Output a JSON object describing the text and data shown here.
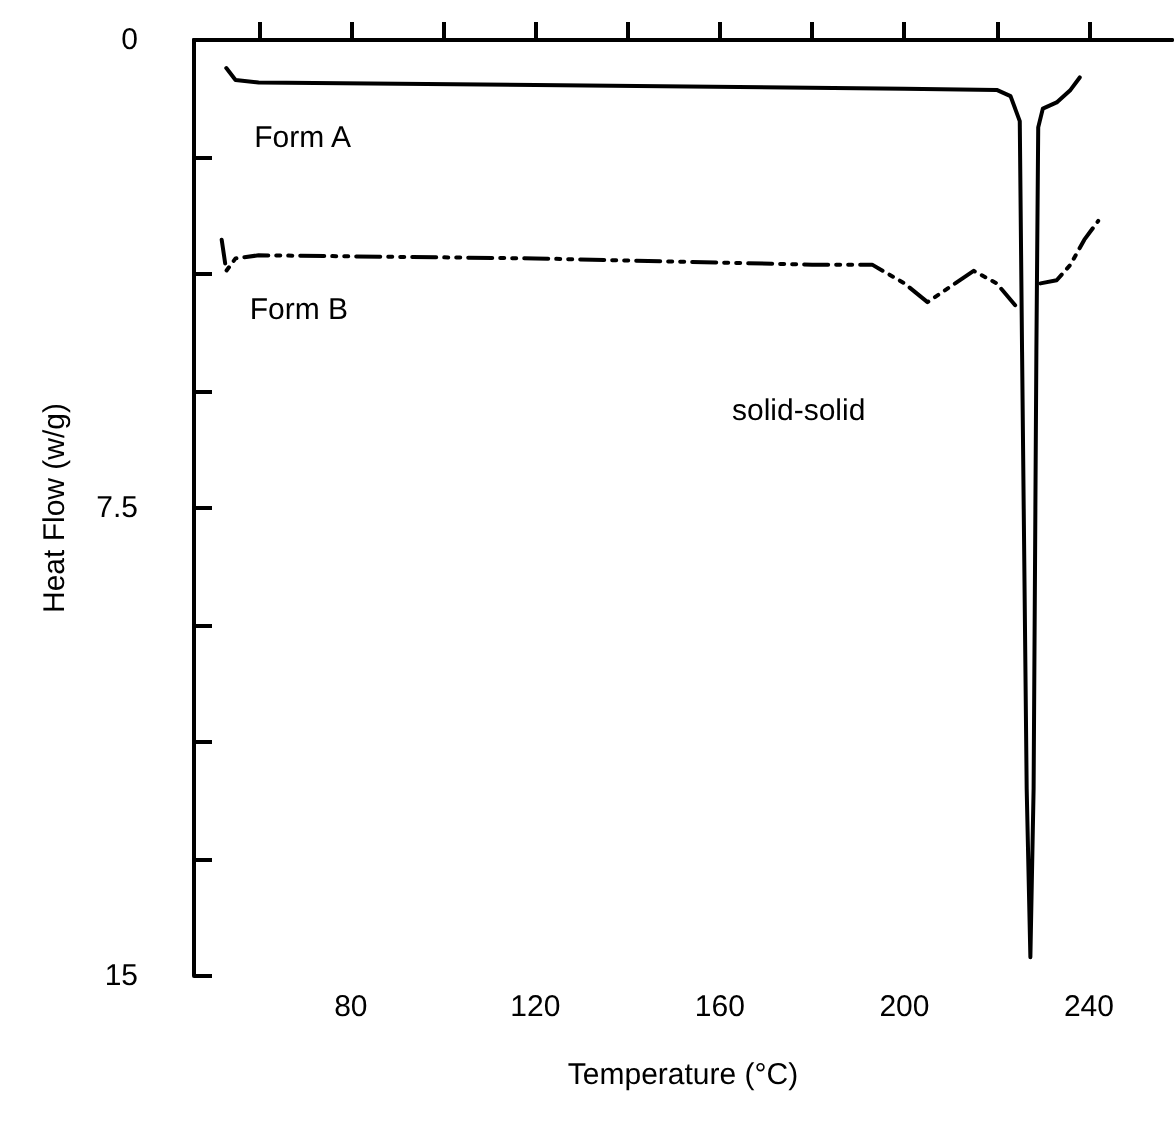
{
  "chart_data": {
    "type": "line",
    "xlabel": "Temperature (°C)",
    "ylabel": "Heat Flow (w/g)",
    "xlim": [
      46,
      258
    ],
    "ylim": [
      15,
      0
    ],
    "xticks": [
      {
        "value": 60,
        "label": null
      },
      80,
      {
        "value": 100,
        "label": null
      },
      120,
      {
        "value": 140,
        "label": null
      },
      160,
      {
        "value": 180,
        "label": null
      },
      200,
      {
        "value": 220,
        "label": null
      },
      240
    ],
    "yticks": [
      0,
      {
        "value": 1.875,
        "label": null
      },
      {
        "value": 3.75,
        "label": null
      },
      {
        "value": 5.625,
        "label": null
      },
      7.5,
      {
        "value": 9.375,
        "label": null
      },
      {
        "value": 11.25,
        "label": null
      },
      {
        "value": 13.125,
        "label": null
      },
      15
    ],
    "grid": false,
    "legend": false,
    "marker": "none",
    "series": [
      {
        "name": "Form A",
        "color": "#000000",
        "line_style": "solid",
        "x": [
          53,
          55,
          60,
          120,
          200,
          220,
          223,
          225,
          225.5,
          226.5,
          227.3,
          228,
          228.6,
          229,
          230,
          233,
          236,
          238
        ],
        "values": [
          0.45,
          0.64,
          0.68,
          0.72,
          0.78,
          0.8,
          0.9,
          1.3,
          5,
          12,
          14.7,
          12,
          5,
          1.4,
          1.1,
          1.0,
          0.8,
          0.6
        ]
      },
      {
        "name": "Form B",
        "color": "#000000",
        "line_style": "dashed",
        "x": [
          52,
          53,
          55,
          60,
          120,
          180,
          193,
          200,
          205,
          210,
          215,
          220,
          224,
          226,
          229.5,
          233,
          236,
          239,
          242
        ],
        "values": [
          3.2,
          3.7,
          3.5,
          3.45,
          3.5,
          3.6,
          3.6,
          3.9,
          4.2,
          3.95,
          3.7,
          3.9,
          4.25,
          null,
          3.9,
          3.85,
          3.6,
          3.2,
          2.9
        ]
      }
    ],
    "annotations": [
      "solid-solid"
    ]
  }
}
